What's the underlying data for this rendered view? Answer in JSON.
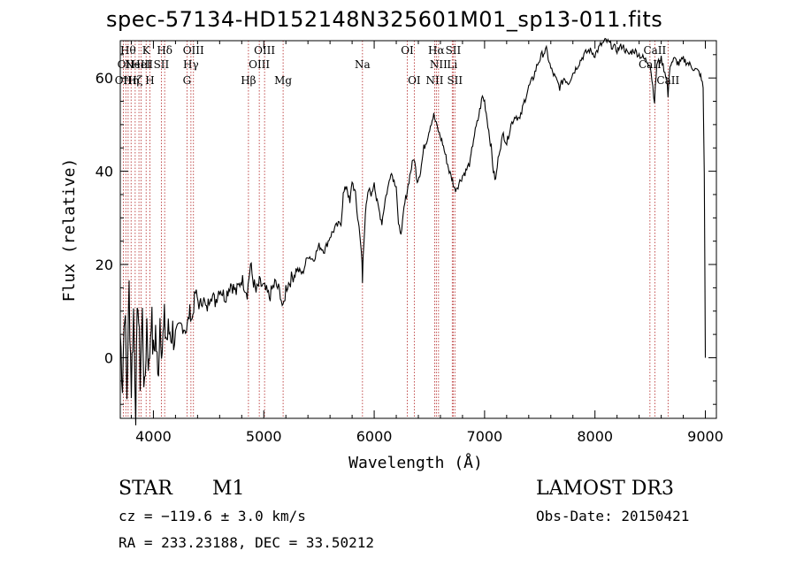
{
  "header": {
    "title": "spec-57134-HD152148N325601M01_sp13-011.fits"
  },
  "footer": {
    "class_label": "STAR",
    "subclass": "M1",
    "survey": "LAMOST DR3",
    "cz_text": "cz = −119.6 ± 3.0 km/s",
    "obs_date": "Obs-Date: 20150421",
    "coords": "RA = 233.23188, DEC =  33.50212"
  },
  "chart_data": {
    "type": "line",
    "title": "spec-57134-HD152148N325601M01_sp13-011.fits",
    "xlabel": "Wavelength (Å)",
    "ylabel": "Flux (relative)",
    "xlim": [
      3700,
      9100
    ],
    "ylim": [
      -13,
      68
    ],
    "xticks": [
      4000,
      5000,
      6000,
      7000,
      8000,
      9000
    ],
    "yticks": [
      0,
      20,
      40,
      60
    ],
    "line_color": "#000000",
    "marker_color": "#b22222",
    "line_markers": [
      {
        "wl": 3727,
        "label": "OII",
        "row": 2
      },
      {
        "wl": 3750,
        "label": "OII",
        "row": 1
      },
      {
        "wl": 3771,
        "label": "Hθ",
        "row": 0
      },
      {
        "wl": 3798,
        "label": "Hη",
        "row": 2
      },
      {
        "wl": 3835,
        "label": "Hζ",
        "row": 2
      },
      {
        "wl": 3869,
        "label": "NeIII",
        "row": 1
      },
      {
        "wl": 3889,
        "label": "HeI",
        "row": 1
      },
      {
        "wl": 3934,
        "label": "K",
        "row": 0
      },
      {
        "wl": 3968,
        "label": "H",
        "row": 2
      },
      {
        "wl": 4072,
        "label": "SII",
        "row": 1
      },
      {
        "wl": 4102,
        "label": "Hδ",
        "row": 0
      },
      {
        "wl": 4304,
        "label": "G",
        "row": 2
      },
      {
        "wl": 4340,
        "label": "Hγ",
        "row": 1
      },
      {
        "wl": 4363,
        "label": "OIII",
        "row": 0
      },
      {
        "wl": 4861,
        "label": "Hβ",
        "row": 2
      },
      {
        "wl": 4959,
        "label": "OIII",
        "row": 1
      },
      {
        "wl": 5007,
        "label": "OIII",
        "row": 0
      },
      {
        "wl": 5175,
        "label": "Mg",
        "row": 2
      },
      {
        "wl": 5894,
        "label": "Na",
        "row": 1
      },
      {
        "wl": 6300,
        "label": "OI",
        "row": 0
      },
      {
        "wl": 6363,
        "label": "OI",
        "row": 2
      },
      {
        "wl": 6548,
        "label": "NII",
        "row": 2
      },
      {
        "wl": 6563,
        "label": "Hα",
        "row": 0
      },
      {
        "wl": 6583,
        "label": "NII",
        "row": 1
      },
      {
        "wl": 6707,
        "label": "Li",
        "row": 1
      },
      {
        "wl": 6716,
        "label": "SII",
        "row": 0
      },
      {
        "wl": 6731,
        "label": "SII",
        "row": 2
      },
      {
        "wl": 8498,
        "label": "CaII",
        "row": 1
      },
      {
        "wl": 8542,
        "label": "CaII",
        "row": 0
      },
      {
        "wl": 8662,
        "label": "CaII",
        "row": 2
      }
    ],
    "spectrum": [
      [
        3700,
        5
      ],
      [
        3720,
        -5
      ],
      [
        3740,
        12
      ],
      [
        3760,
        -8
      ],
      [
        3780,
        15
      ],
      [
        3800,
        -6
      ],
      [
        3820,
        10
      ],
      [
        3840,
        -10
      ],
      [
        3860,
        14
      ],
      [
        3880,
        -4
      ],
      [
        3900,
        9
      ],
      [
        3920,
        -9
      ],
      [
        3940,
        8
      ],
      [
        3960,
        -3
      ],
      [
        3980,
        10
      ],
      [
        4000,
        0
      ],
      [
        4020,
        6
      ],
      [
        4040,
        -5
      ],
      [
        4060,
        9
      ],
      [
        4080,
        2
      ],
      [
        4100,
        7
      ],
      [
        4120,
        4
      ],
      [
        4150,
        6
      ],
      [
        4200,
        5
      ],
      [
        4250,
        7
      ],
      [
        4300,
        6
      ],
      [
        4330,
        10
      ],
      [
        4350,
        8
      ],
      [
        4380,
        14
      ],
      [
        4420,
        11
      ],
      [
        4450,
        13
      ],
      [
        4480,
        10
      ],
      [
        4520,
        14
      ],
      [
        4560,
        12
      ],
      [
        4600,
        15
      ],
      [
        4650,
        13
      ],
      [
        4700,
        16
      ],
      [
        4750,
        14
      ],
      [
        4800,
        17
      ],
      [
        4850,
        14
      ],
      [
        4880,
        20
      ],
      [
        4900,
        17
      ],
      [
        4930,
        14
      ],
      [
        4960,
        16
      ],
      [
        5000,
        15
      ],
      [
        5050,
        13
      ],
      [
        5100,
        16
      ],
      [
        5150,
        14
      ],
      [
        5175,
        10
      ],
      [
        5200,
        15
      ],
      [
        5250,
        17
      ],
      [
        5300,
        19
      ],
      [
        5350,
        18
      ],
      [
        5400,
        22
      ],
      [
        5450,
        21
      ],
      [
        5500,
        24
      ],
      [
        5550,
        23
      ],
      [
        5600,
        26
      ],
      [
        5650,
        28
      ],
      [
        5700,
        29
      ],
      [
        5720,
        35
      ],
      [
        5750,
        37
      ],
      [
        5780,
        33
      ],
      [
        5800,
        38
      ],
      [
        5830,
        35
      ],
      [
        5850,
        30
      ],
      [
        5870,
        27
      ],
      [
        5890,
        20
      ],
      [
        5894,
        16
      ],
      [
        5900,
        22
      ],
      [
        5920,
        31
      ],
      [
        5950,
        36
      ],
      [
        5980,
        35
      ],
      [
        6000,
        38
      ],
      [
        6020,
        34
      ],
      [
        6050,
        31
      ],
      [
        6070,
        29
      ],
      [
        6100,
        34
      ],
      [
        6130,
        37
      ],
      [
        6150,
        40
      ],
      [
        6180,
        38
      ],
      [
        6200,
        37
      ],
      [
        6220,
        28
      ],
      [
        6250,
        27
      ],
      [
        6270,
        32
      ],
      [
        6300,
        36
      ],
      [
        6330,
        40
      ],
      [
        6360,
        43
      ],
      [
        6390,
        38
      ],
      [
        6420,
        40
      ],
      [
        6450,
        45
      ],
      [
        6480,
        47
      ],
      [
        6510,
        50
      ],
      [
        6540,
        52
      ],
      [
        6563,
        50
      ],
      [
        6590,
        48
      ],
      [
        6620,
        46
      ],
      [
        6650,
        43
      ],
      [
        6680,
        40
      ],
      [
        6710,
        38
      ],
      [
        6730,
        36
      ],
      [
        6760,
        37
      ],
      [
        6800,
        39
      ],
      [
        6830,
        40
      ],
      [
        6870,
        42
      ],
      [
        6900,
        47
      ],
      [
        6940,
        51
      ],
      [
        6980,
        56
      ],
      [
        7000,
        55
      ],
      [
        7030,
        50
      ],
      [
        7060,
        45
      ],
      [
        7080,
        40
      ],
      [
        7100,
        38
      ],
      [
        7130,
        44
      ],
      [
        7170,
        48
      ],
      [
        7200,
        46
      ],
      [
        7240,
        50
      ],
      [
        7280,
        52
      ],
      [
        7320,
        51
      ],
      [
        7360,
        55
      ],
      [
        7400,
        58
      ],
      [
        7440,
        60
      ],
      [
        7480,
        63
      ],
      [
        7520,
        65
      ],
      [
        7560,
        66
      ],
      [
        7600,
        62
      ],
      [
        7640,
        60
      ],
      [
        7680,
        58
      ],
      [
        7720,
        60
      ],
      [
        7760,
        59
      ],
      [
        7800,
        61
      ],
      [
        7850,
        63
      ],
      [
        7900,
        65
      ],
      [
        7950,
        66
      ],
      [
        8000,
        65
      ],
      [
        8050,
        67
      ],
      [
        8100,
        68
      ],
      [
        8150,
        67
      ],
      [
        8200,
        66
      ],
      [
        8250,
        67
      ],
      [
        8300,
        65
      ],
      [
        8350,
        66
      ],
      [
        8400,
        65
      ],
      [
        8450,
        64
      ],
      [
        8500,
        63
      ],
      [
        8540,
        55
      ],
      [
        8560,
        63
      ],
      [
        8600,
        64
      ],
      [
        8650,
        60
      ],
      [
        8662,
        56
      ],
      [
        8680,
        63
      ],
      [
        8720,
        64
      ],
      [
        8760,
        63
      ],
      [
        8800,
        64
      ],
      [
        8850,
        63
      ],
      [
        8900,
        62
      ],
      [
        8950,
        61
      ],
      [
        8980,
        58
      ],
      [
        8990,
        40
      ],
      [
        9000,
        0
      ]
    ]
  }
}
